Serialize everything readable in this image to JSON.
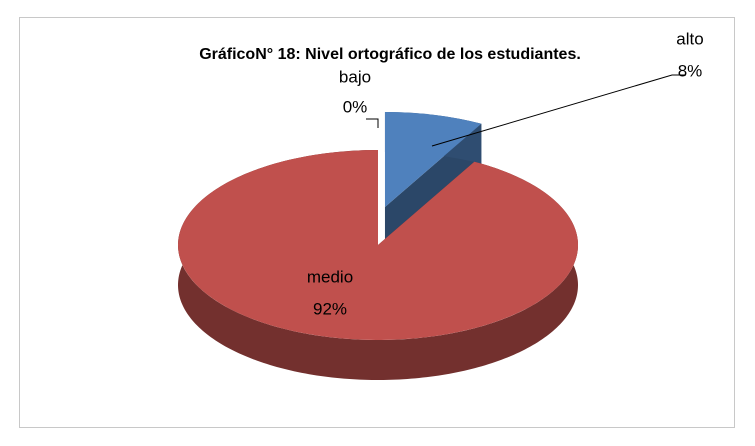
{
  "chart_data": {
    "type": "pie",
    "title": "GráficoN° 18: Nivel ortográfico de los estudiantes.",
    "categories": [
      "alto",
      "medio",
      "bajo"
    ],
    "values": [
      8,
      92,
      0
    ],
    "value_labels": [
      "8%",
      "92%",
      "0%"
    ],
    "colors": [
      "#4f81bd",
      "#c0504d",
      "#9bbb59"
    ]
  }
}
